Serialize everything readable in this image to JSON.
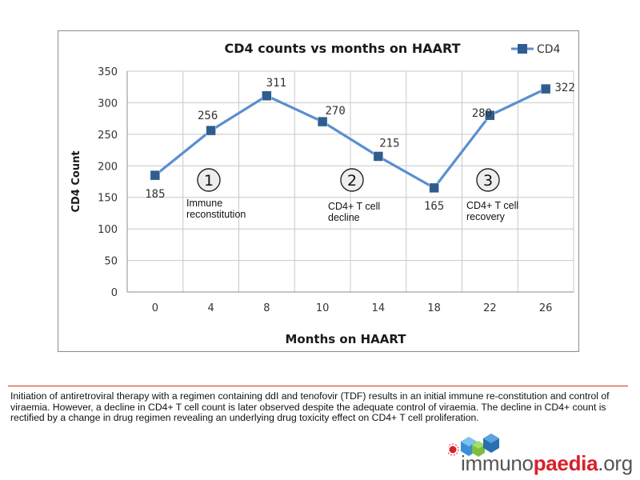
{
  "chart_data": {
    "type": "line",
    "title": "CD4 counts vs months on HAART",
    "xlabel": "Months on HAART",
    "ylabel": "CD4 Count",
    "categories": [
      "0",
      "4",
      "8",
      "10",
      "14",
      "18",
      "22",
      "26"
    ],
    "series": [
      {
        "name": "CD4",
        "values": [
          185,
          256,
          311,
          270,
          215,
          165,
          280,
          322
        ],
        "color": "#5a8fd0",
        "marker_color": "#2f5d8f"
      }
    ],
    "data_labels": [
      "185",
      "256",
      "311",
      "270",
      "215",
      "165",
      "280",
      "322"
    ],
    "ylim": [
      0,
      350
    ],
    "yticks": [
      "0",
      "50",
      "100",
      "150",
      "200",
      "250",
      "300",
      "350"
    ],
    "grid": true,
    "legend": "top-right",
    "annotations": [
      {
        "number": "1",
        "text": "Immune reconstitution"
      },
      {
        "number": "2",
        "text": "CD4+ T cell decline"
      },
      {
        "number": "3",
        "text": "CD4+ T cell recovery"
      }
    ]
  },
  "caption": "Initiation of antiretroviral therapy with a regimen containing ddI and tenofovir (TDF) results in an initial immune re-constitution and control of viraemia. However, a decline in CD4+ T cell count is later observed despite the adequate control of viraemia. The decline in CD4+ count is rectified by a change in drug regimen revealing an underlying drug toxicity effect on CD4+ T cell proliferation.",
  "logo": {
    "part1": "immuno",
    "part2": "paedia",
    "part3": ".org"
  }
}
